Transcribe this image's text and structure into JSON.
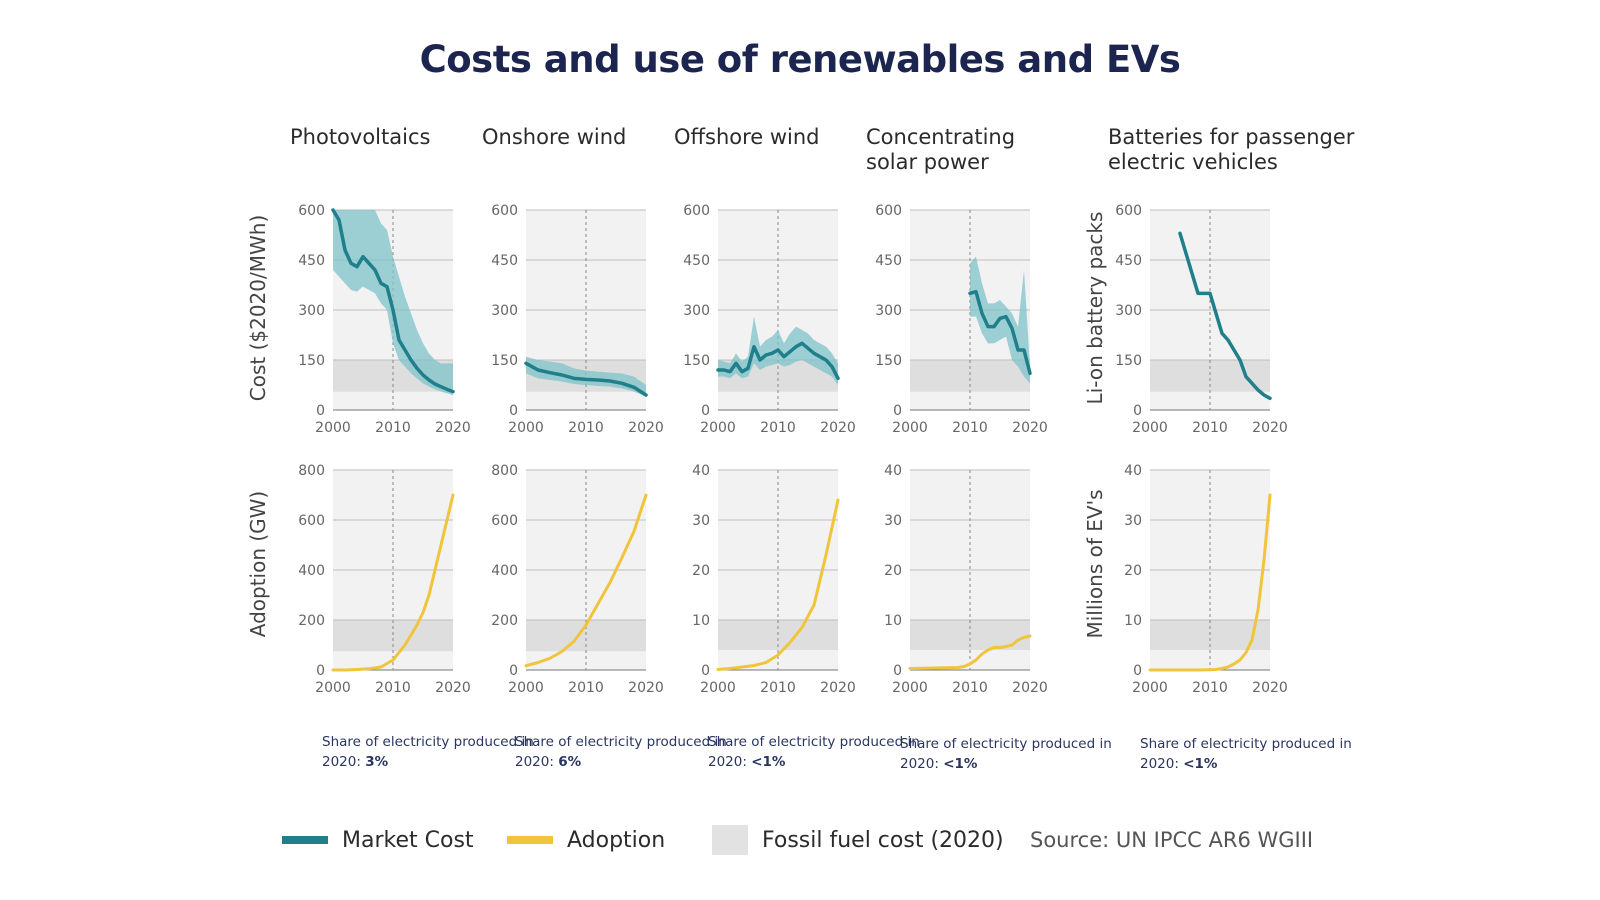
{
  "title": "Costs and use of renewables and EVs",
  "colors": {
    "cost": "#1f7f8a",
    "band": "#7fc3c9",
    "adoption": "#f0c53c",
    "fossil": "#dedede",
    "panel": "#f2f2f2"
  },
  "columns": [
    {
      "title": "Photovoltaics",
      "share_label": "Share of electricity produced in 2020:",
      "share_value": "3%"
    },
    {
      "title": "Onshore wind",
      "share_label": "Share of electricity produced in 2020:",
      "share_value": "6%"
    },
    {
      "title": "Offshore wind",
      "share_label": "Share of electricity produced in 2020:",
      "share_value": "<1%"
    },
    {
      "title": "Concentrating solar power",
      "share_label": "Share of electricity produced in 2020:",
      "share_value": "<1%"
    },
    {
      "title": "Batteries for passenger electric vehicles",
      "share_label": "Share of electricity produced in 2020:",
      "share_value": "<1%"
    }
  ],
  "ylabels": {
    "cost_left": "Cost ($2020/MWh)",
    "cost_right": "Li-on battery packs",
    "adoption_left": "Adoption (GW)",
    "adoption_right": "Millions of EV's"
  },
  "legend": {
    "market_cost": "Market Cost",
    "adoption": "Adoption",
    "fossil": "Fossil fuel cost (2020)"
  },
  "source": "Source: UN IPCC AR6 WGIII",
  "chart_data": [
    {
      "type": "line",
      "panel": "Photovoltaics cost",
      "xlim": [
        2000,
        2020
      ],
      "ylim": [
        0,
        600
      ],
      "xticks": [
        2000,
        2010,
        2020
      ],
      "yticks": [
        0,
        150,
        300,
        450,
        600
      ],
      "fossil_band": [
        55,
        150
      ],
      "series": [
        {
          "name": "Market Cost",
          "x": [
            2000,
            2001,
            2002,
            2003,
            2004,
            2005,
            2006,
            2007,
            2008,
            2009,
            2010,
            2011,
            2012,
            2013,
            2014,
            2015,
            2016,
            2017,
            2018,
            2019,
            2020
          ],
          "y": [
            600,
            570,
            480,
            440,
            430,
            460,
            440,
            420,
            380,
            370,
            300,
            210,
            180,
            150,
            125,
            105,
            90,
            78,
            70,
            62,
            55
          ],
          "lower": [
            420,
            400,
            380,
            360,
            355,
            370,
            360,
            350,
            320,
            300,
            200,
            150,
            130,
            110,
            95,
            80,
            70,
            62,
            55,
            50,
            45
          ],
          "upper": [
            600,
            600,
            600,
            600,
            600,
            600,
            600,
            600,
            560,
            540,
            460,
            400,
            340,
            290,
            240,
            200,
            170,
            150,
            140,
            140,
            140
          ]
        }
      ]
    },
    {
      "type": "line",
      "panel": "Onshore wind cost",
      "xlim": [
        2000,
        2020
      ],
      "ylim": [
        0,
        600
      ],
      "xticks": [
        2000,
        2010,
        2020
      ],
      "yticks": [
        0,
        150,
        300,
        450,
        600
      ],
      "fossil_band": [
        55,
        150
      ],
      "series": [
        {
          "name": "Market Cost",
          "x": [
            2000,
            2002,
            2004,
            2006,
            2008,
            2010,
            2012,
            2014,
            2016,
            2018,
            2020
          ],
          "y": [
            140,
            120,
            112,
            105,
            95,
            92,
            90,
            87,
            80,
            68,
            45
          ],
          "lower": [
            110,
            95,
            90,
            85,
            78,
            75,
            72,
            70,
            65,
            55,
            40
          ],
          "upper": [
            160,
            150,
            145,
            140,
            125,
            118,
            115,
            112,
            110,
            100,
            75
          ]
        }
      ]
    },
    {
      "type": "line",
      "panel": "Offshore wind cost",
      "xlim": [
        2000,
        2020
      ],
      "ylim": [
        0,
        600
      ],
      "xticks": [
        2000,
        2010,
        2020
      ],
      "yticks": [
        0,
        150,
        300,
        450,
        600
      ],
      "fossil_band": [
        55,
        150
      ],
      "series": [
        {
          "name": "Market Cost",
          "x": [
            2000,
            2001,
            2002,
            2003,
            2004,
            2005,
            2006,
            2007,
            2008,
            2009,
            2010,
            2011,
            2012,
            2013,
            2014,
            2015,
            2016,
            2017,
            2018,
            2019,
            2020
          ],
          "y": [
            120,
            120,
            115,
            140,
            115,
            125,
            190,
            150,
            165,
            170,
            180,
            160,
            175,
            190,
            200,
            185,
            170,
            160,
            150,
            130,
            95
          ],
          "lower": [
            100,
            100,
            95,
            110,
            95,
            100,
            140,
            120,
            130,
            135,
            140,
            130,
            135,
            145,
            150,
            140,
            130,
            120,
            110,
            100,
            75
          ],
          "upper": [
            150,
            145,
            140,
            170,
            145,
            160,
            280,
            190,
            210,
            220,
            240,
            200,
            230,
            250,
            240,
            230,
            210,
            200,
            190,
            170,
            140
          ]
        }
      ]
    },
    {
      "type": "line",
      "panel": "Concentrating solar power cost",
      "xlim": [
        2000,
        2020
      ],
      "ylim": [
        0,
        600
      ],
      "xticks": [
        2000,
        2010,
        2020
      ],
      "yticks": [
        0,
        150,
        300,
        450,
        600
      ],
      "fossil_band": [
        55,
        150
      ],
      "series": [
        {
          "name": "Market Cost",
          "x": [
            2010,
            2011,
            2012,
            2013,
            2014,
            2015,
            2016,
            2017,
            2018,
            2019,
            2020
          ],
          "y": [
            350,
            355,
            290,
            250,
            250,
            275,
            280,
            245,
            180,
            180,
            110
          ],
          "lower": [
            280,
            280,
            230,
            200,
            200,
            210,
            220,
            150,
            130,
            100,
            80
          ],
          "upper": [
            440,
            460,
            380,
            320,
            320,
            330,
            310,
            290,
            250,
            420,
            130
          ]
        }
      ]
    },
    {
      "type": "line",
      "panel": "Li-on battery packs cost",
      "xlim": [
        2000,
        2020
      ],
      "ylim": [
        0,
        600
      ],
      "xticks": [
        2000,
        2010,
        2020
      ],
      "yticks": [
        0,
        150,
        300,
        450,
        600
      ],
      "fossil_band": [
        55,
        150
      ],
      "series": [
        {
          "name": "Market Cost",
          "x": [
            2005,
            2006,
            2007,
            2008,
            2009,
            2010,
            2011,
            2012,
            2013,
            2014,
            2015,
            2016,
            2017,
            2018,
            2019,
            2020
          ],
          "y": [
            530,
            470,
            410,
            350,
            350,
            350,
            290,
            230,
            210,
            180,
            150,
            100,
            80,
            60,
            45,
            35
          ]
        }
      ]
    },
    {
      "type": "line",
      "panel": "Photovoltaics adoption",
      "xlim": [
        2000,
        2020
      ],
      "ylim": [
        0,
        800
      ],
      "xticks": [
        2000,
        2010,
        2020
      ],
      "yticks": [
        0,
        200,
        400,
        600,
        800
      ],
      "fossil_band": [
        75,
        200
      ],
      "series": [
        {
          "name": "Adoption",
          "x": [
            2000,
            2002,
            2004,
            2006,
            2008,
            2010,
            2011,
            2012,
            2013,
            2014,
            2015,
            2016,
            2017,
            2018,
            2019,
            2020
          ],
          "y": [
            0,
            0,
            2,
            5,
            12,
            40,
            70,
            100,
            140,
            180,
            230,
            300,
            400,
            500,
            600,
            700
          ]
        }
      ]
    },
    {
      "type": "line",
      "panel": "Onshore wind adoption",
      "xlim": [
        2000,
        2020
      ],
      "ylim": [
        0,
        800
      ],
      "xticks": [
        2000,
        2010,
        2020
      ],
      "yticks": [
        0,
        200,
        400,
        600,
        800
      ],
      "fossil_band": [
        75,
        200
      ],
      "series": [
        {
          "name": "Adoption",
          "x": [
            2000,
            2002,
            2004,
            2006,
            2008,
            2010,
            2012,
            2014,
            2016,
            2018,
            2020
          ],
          "y": [
            17,
            30,
            47,
            74,
            115,
            180,
            265,
            350,
            450,
            555,
            700
          ]
        }
      ]
    },
    {
      "type": "line",
      "panel": "Offshore wind adoption",
      "xlim": [
        2000,
        2020
      ],
      "ylim": [
        0,
        40
      ],
      "xticks": [
        2000,
        2010,
        2020
      ],
      "yticks": [
        0,
        10,
        20,
        30,
        40
      ],
      "fossil_band": [
        4,
        10
      ],
      "series": [
        {
          "name": "Adoption",
          "x": [
            2000,
            2002,
            2004,
            2006,
            2008,
            2010,
            2012,
            2014,
            2016,
            2018,
            2020
          ],
          "y": [
            0.1,
            0.3,
            0.6,
            0.9,
            1.5,
            3,
            5.5,
            8.5,
            13,
            23,
            34
          ]
        }
      ]
    },
    {
      "type": "line",
      "panel": "Concentrating solar power adoption",
      "xlim": [
        2000,
        2020
      ],
      "ylim": [
        0,
        40
      ],
      "xticks": [
        2000,
        2010,
        2020
      ],
      "yticks": [
        0,
        10,
        20,
        30,
        40
      ],
      "fossil_band": [
        4,
        10
      ],
      "series": [
        {
          "name": "Adoption",
          "x": [
            2000,
            2004,
            2008,
            2009,
            2010,
            2011,
            2012,
            2013,
            2014,
            2015,
            2016,
            2017,
            2018,
            2019,
            2020
          ],
          "y": [
            0.3,
            0.4,
            0.5,
            0.7,
            1.2,
            2,
            3.2,
            4,
            4.5,
            4.5,
            4.7,
            5,
            6,
            6.5,
            6.8
          ]
        }
      ]
    },
    {
      "type": "line",
      "panel": "Millions of EV's adoption",
      "xlim": [
        2000,
        2020
      ],
      "ylim": [
        0,
        40
      ],
      "xticks": [
        2000,
        2010,
        2020
      ],
      "yticks": [
        0,
        10,
        20,
        30,
        40
      ],
      "fossil_band": [
        4,
        10
      ],
      "series": [
        {
          "name": "Adoption",
          "x": [
            2000,
            2008,
            2010,
            2011,
            2012,
            2013,
            2014,
            2015,
            2016,
            2017,
            2018,
            2019,
            2020
          ],
          "y": [
            0,
            0,
            0.05,
            0.1,
            0.3,
            0.6,
            1.2,
            2,
            3.5,
            6,
            12,
            22,
            35
          ]
        }
      ]
    }
  ]
}
